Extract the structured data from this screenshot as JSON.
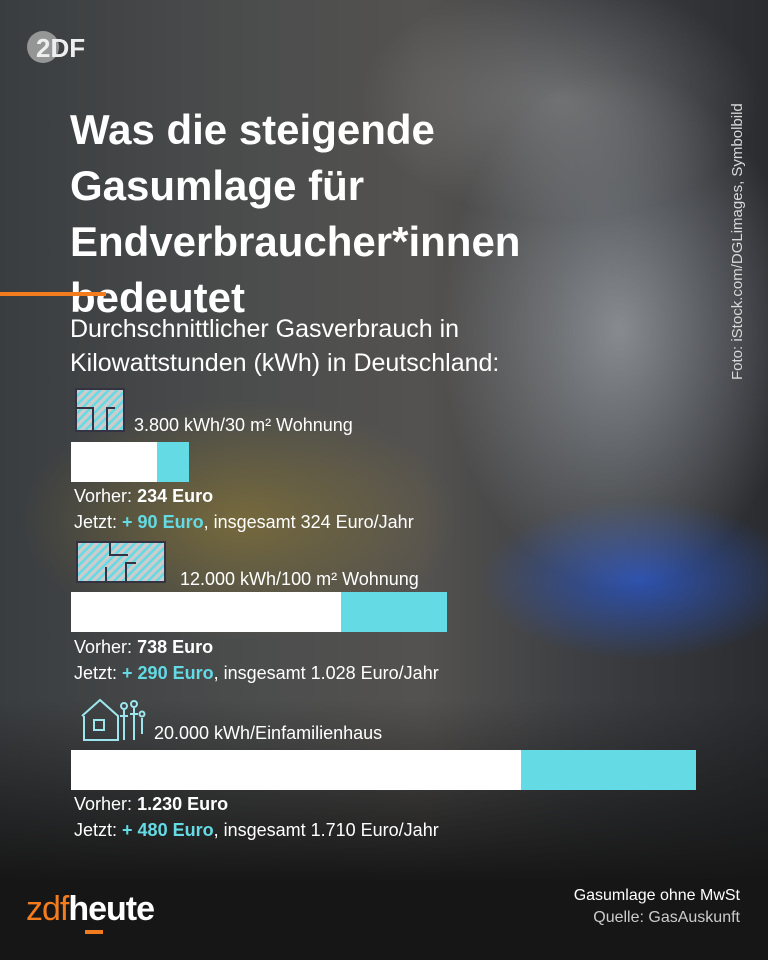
{
  "brand": {
    "top_logo": "ZDF",
    "footer_logo_a": "zdf",
    "footer_logo_b": "heute"
  },
  "photo_credit": "Foto: iStock.com/DGLimages, Symbolbild",
  "title": "Was die steigende Gasumlage für Endverbraucher*innen bedeutet",
  "subtitle": "Durchschnittlicher Gasverbrauch in Kilowattstunden (kWh) in Deutschland:",
  "colors": {
    "accent": "#f27c1e",
    "increase": "#64dbe4",
    "before": "#ffffff"
  },
  "chart_data": {
    "type": "bar",
    "stacked": true,
    "categories": [
      "3.800 kWh/30 m² Wohnung",
      "12.000 kWh/100 m² Wohnung",
      "20.000 kWh/Einfamilienhaus"
    ],
    "series": [
      {
        "name": "Vorher",
        "values": [
          234,
          738,
          1230
        ]
      },
      {
        "name": "Jetzt (Zuschlag)",
        "values": [
          90,
          290,
          480
        ]
      }
    ],
    "max": 1710
  },
  "items": [
    {
      "icon": "small-apartment-icon",
      "label": "3.800 kWh/30 m² Wohnung",
      "before_label": "Vorher:",
      "before": "234 Euro",
      "now_label": "Jetzt:",
      "increase": "+ 90 Euro",
      "total": ", insgesamt 324 Euro/Jahr"
    },
    {
      "icon": "large-apartment-icon",
      "label": "12.000 kWh/100 m² Wohnung",
      "before_label": "Vorher:",
      "before": "738 Euro",
      "now_label": "Jetzt:",
      "increase": "+ 290 Euro",
      "total": ", insgesamt 1.028 Euro/Jahr"
    },
    {
      "icon": "house-family-icon",
      "label": "20.000 kWh/Einfamilienhaus",
      "before_label": "Vorher:",
      "before": "1.230 Euro",
      "now_label": "Jetzt:",
      "increase": "+ 480 Euro",
      "total": ", insgesamt 1.710 Euro/Jahr"
    }
  ],
  "footer": {
    "note": "Gasumlage ohne MwSt",
    "source": "Quelle: GasAuskunft"
  }
}
